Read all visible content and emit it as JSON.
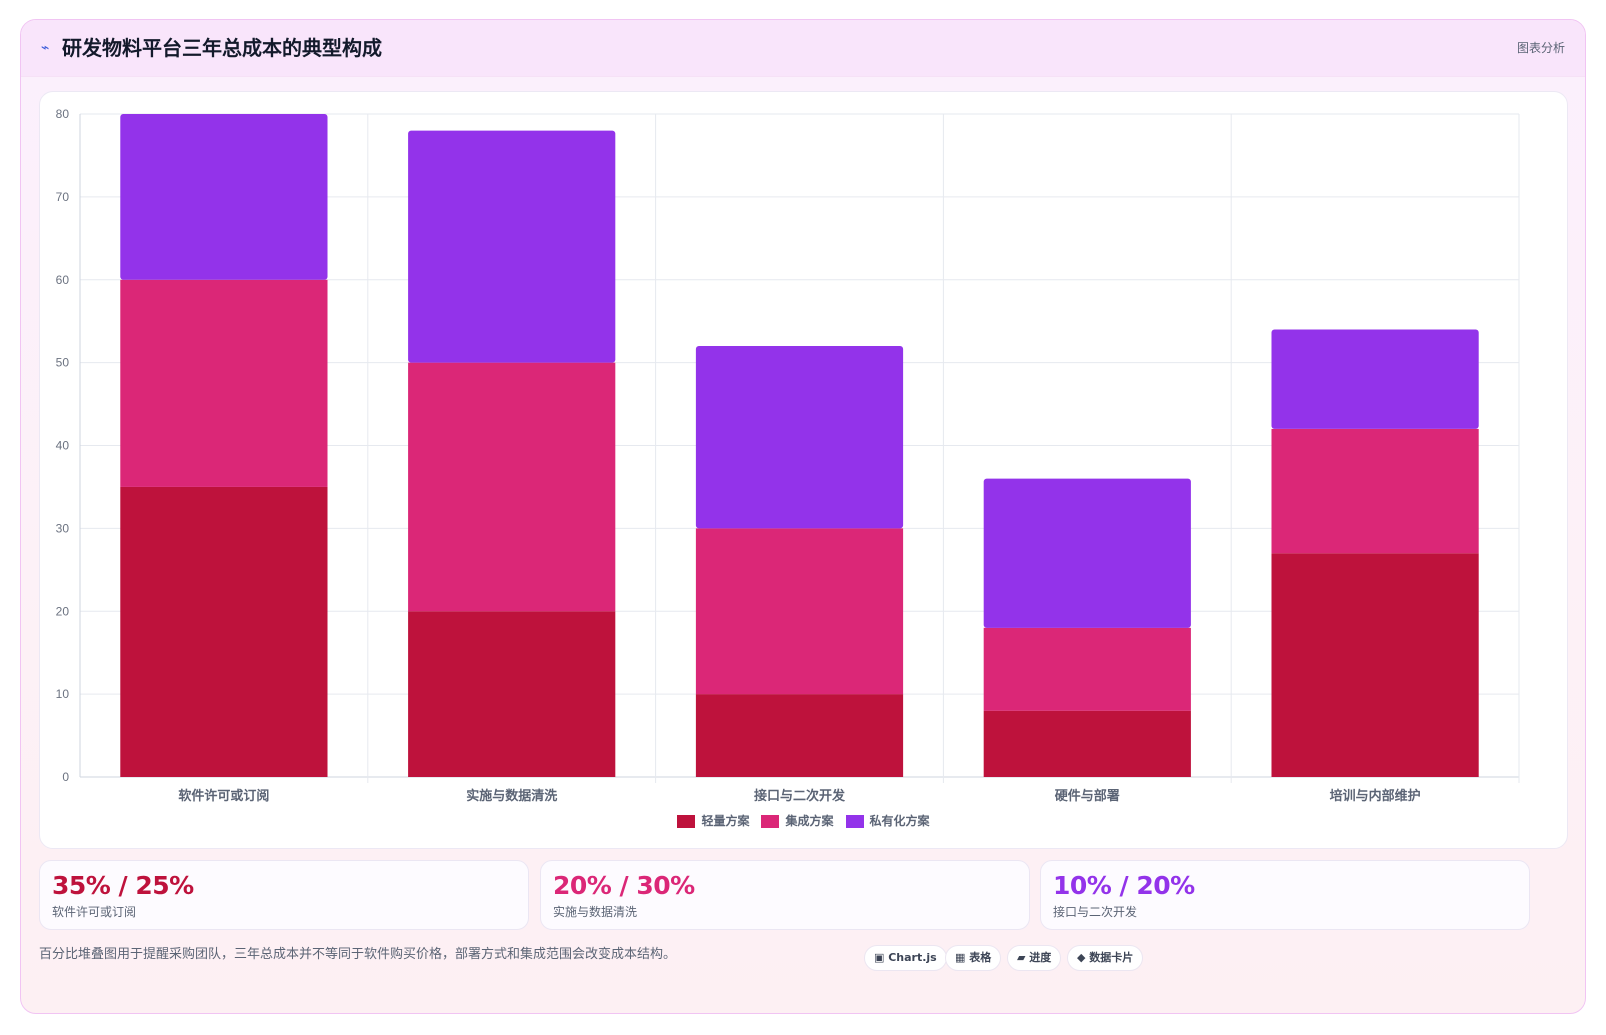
{
  "header": {
    "icon": "lightning-icon",
    "icon_glyph": "⌁",
    "title": "研发物料平台三年总成本的典型构成",
    "tag": "图表分析"
  },
  "chart_data": {
    "type": "bar",
    "stacked": true,
    "categories": [
      "软件许可或订阅",
      "实施与数据清洗",
      "接口与二次开发",
      "硬件与部署",
      "培训与内部维护"
    ],
    "series": [
      {
        "name": "轻量方案",
        "color": "#be123c",
        "values": [
          35,
          20,
          10,
          8,
          27
        ]
      },
      {
        "name": "集成方案",
        "color": "#db2777",
        "values": [
          25,
          30,
          20,
          10,
          15
        ]
      },
      {
        "name": "私有化方案",
        "color": "#9333ea",
        "values": [
          20,
          28,
          22,
          18,
          12
        ]
      }
    ],
    "ylim": [
      0,
      80
    ],
    "yticks": [
      0,
      10,
      20,
      30,
      40,
      50,
      60,
      70,
      80
    ],
    "grid": true,
    "legend": "bottom"
  },
  "stats": [
    {
      "value": "35% / 25%",
      "label": "软件许可或订阅",
      "color": "#be123c"
    },
    {
      "value": "20% / 30%",
      "label": "实施与数据清洗",
      "color": "#db2777"
    },
    {
      "value": "10% / 20%",
      "label": "接口与二次开发",
      "color": "#9333ea"
    }
  ],
  "footnote": "百分比堆叠图用于提醒采购团队，三年总成本并不等同于软件购买价格，部署方式和集成范围会改变成本结构。",
  "chips": [
    {
      "icon": "chart-icon",
      "label": "▣ Chart.js"
    },
    {
      "icon": "table-icon",
      "label": "▦ 表格"
    },
    {
      "icon": "progress-icon",
      "label": "▰ 进度"
    },
    {
      "icon": "data-card-icon",
      "label": "◆ 数据卡片"
    }
  ]
}
